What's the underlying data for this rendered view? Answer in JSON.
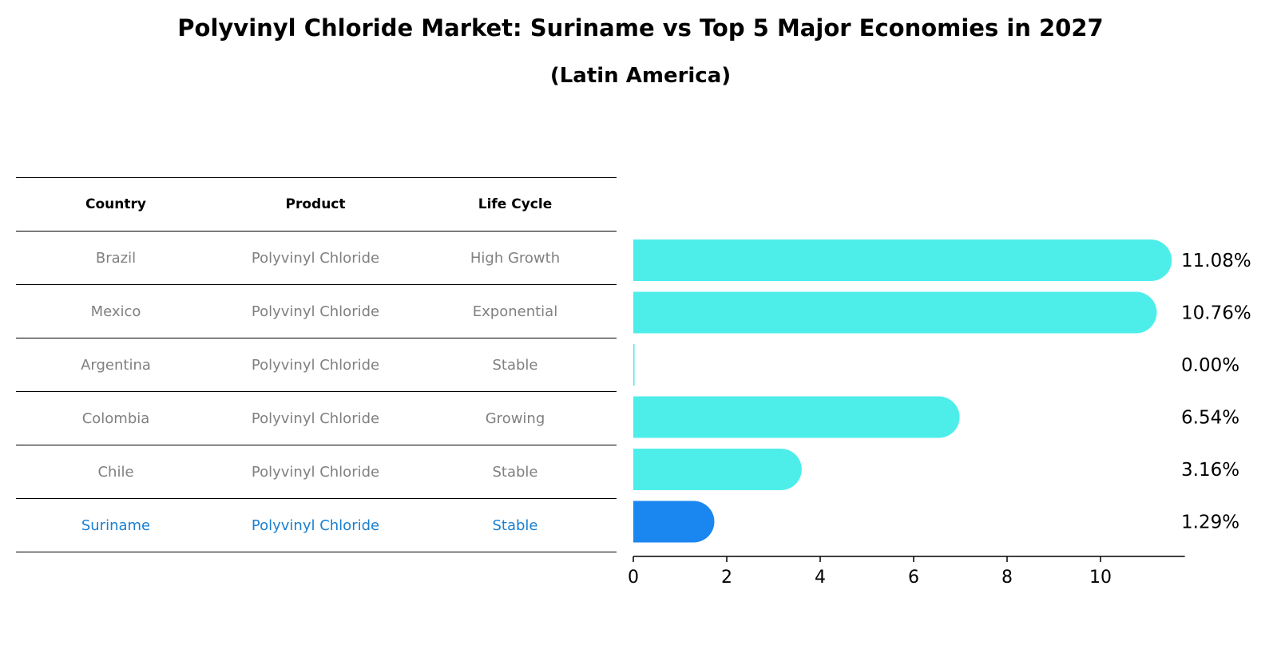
{
  "title": "Polyvinyl Chloride Market: Suriname vs Top 5 Major Economies in 2027",
  "subtitle": "(Latin America)",
  "table": {
    "headers": [
      "Country",
      "Product",
      "Life Cycle"
    ],
    "rows": [
      {
        "country": "Brazil",
        "product": "Polyvinyl Chloride",
        "life_cycle": "High Growth"
      },
      {
        "country": "Mexico",
        "product": "Polyvinyl Chloride",
        "life_cycle": "Exponential"
      },
      {
        "country": "Argentina",
        "product": "Polyvinyl Chloride",
        "life_cycle": "Stable"
      },
      {
        "country": "Colombia",
        "product": "Polyvinyl Chloride",
        "life_cycle": "Growing"
      },
      {
        "country": "Chile",
        "product": "Polyvinyl Chloride",
        "life_cycle": "Stable"
      },
      {
        "country": "Suriname",
        "product": "Polyvinyl Chloride",
        "life_cycle": "Stable"
      }
    ]
  },
  "chart_data": {
    "type": "bar",
    "orientation": "horizontal",
    "categories": [
      "Brazil",
      "Mexico",
      "Argentina",
      "Colombia",
      "Chile",
      "Suriname"
    ],
    "values": [
      11.08,
      10.76,
      0.0,
      6.54,
      3.16,
      1.29
    ],
    "value_labels": [
      "11.08%",
      "10.76%",
      "0.00%",
      "6.54%",
      "3.16%",
      "1.29%"
    ],
    "xticks": [
      0,
      2,
      4,
      6,
      8,
      10
    ],
    "xlim": [
      0,
      11.6
    ],
    "grid": false,
    "highlight": "Suriname"
  },
  "colors": {
    "bar": "#4deeea",
    "highlight_bar": "#1a86f0",
    "highlight_text": "#1a7fd1",
    "muted_text": "#808080"
  }
}
